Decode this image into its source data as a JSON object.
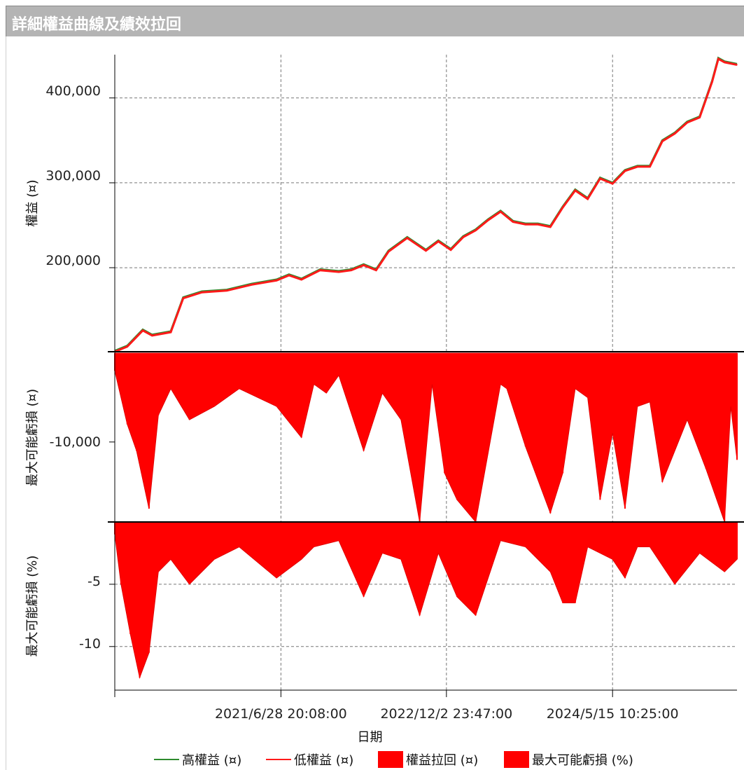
{
  "title": "詳細權益曲線及績效拉回",
  "chart_data": [
    {
      "panel": "equity",
      "type": "line",
      "ylabel": "權益 (¤)",
      "ylim": [
        101000,
        451000
      ],
      "yticks": [
        200000,
        300000,
        400000
      ],
      "ytick_labels": [
        "200,000",
        "300,000",
        "400,000"
      ],
      "x_fraction": [
        0,
        0.02,
        0.045,
        0.06,
        0.09,
        0.11,
        0.14,
        0.18,
        0.22,
        0.26,
        0.28,
        0.3,
        0.33,
        0.36,
        0.38,
        0.4,
        0.42,
        0.44,
        0.47,
        0.5,
        0.52,
        0.54,
        0.56,
        0.58,
        0.6,
        0.62,
        0.64,
        0.66,
        0.68,
        0.7,
        0.72,
        0.74,
        0.76,
        0.78,
        0.8,
        0.82,
        0.84,
        0.86,
        0.88,
        0.9,
        0.92,
        0.94,
        0.96,
        0.97,
        0.98,
        1.0
      ],
      "high_equity": [
        102000,
        108000,
        127000,
        121000,
        125000,
        165000,
        172000,
        174000,
        181000,
        186000,
        192000,
        187000,
        198000,
        196000,
        198000,
        204000,
        198000,
        220000,
        236000,
        221000,
        232000,
        222000,
        237000,
        245000,
        257000,
        267000,
        255000,
        252000,
        252000,
        249000,
        272000,
        292000,
        282000,
        306000,
        300000,
        315000,
        320000,
        320000,
        350000,
        359000,
        372000,
        378000,
        420000,
        447000,
        443000,
        440000
      ],
      "low_equity": [
        101000,
        107000,
        126000,
        120000,
        124000,
        164000,
        171000,
        173000,
        180000,
        185000,
        191000,
        186000,
        197000,
        195000,
        197000,
        203000,
        197000,
        219000,
        235000,
        220000,
        231000,
        221000,
        236000,
        244000,
        256000,
        266000,
        254000,
        251000,
        251000,
        248000,
        271000,
        291000,
        281000,
        305000,
        299000,
        314000,
        319000,
        319000,
        349000,
        358000,
        371000,
        377000,
        419000,
        446000,
        442000,
        439000
      ]
    },
    {
      "panel": "drawdown_abs",
      "type": "area",
      "ylabel": "最大可能虧損 (¤)",
      "ylim": [
        -19000,
        0
      ],
      "yticks": [
        -10000
      ],
      "ytick_labels": [
        "-10,000"
      ],
      "x_fraction": [
        0,
        0.02,
        0.035,
        0.055,
        0.07,
        0.09,
        0.12,
        0.16,
        0.2,
        0.26,
        0.3,
        0.32,
        0.34,
        0.36,
        0.4,
        0.43,
        0.46,
        0.49,
        0.51,
        0.53,
        0.55,
        0.58,
        0.62,
        0.63,
        0.66,
        0.7,
        0.7,
        0.72,
        0.74,
        0.76,
        0.78,
        0.8,
        0.82,
        0.84,
        0.86,
        0.88,
        0.92,
        0.95,
        0.98,
        0.99,
        1.0
      ],
      "values": [
        -2000,
        -8000,
        -11000,
        -17500,
        -7000,
        -4000,
        -7500,
        -6000,
        -4000,
        -6000,
        -9500,
        -3500,
        -4500,
        -2500,
        -11000,
        -4500,
        -7500,
        -19000,
        -3500,
        -13500,
        -16500,
        -19000,
        -3500,
        -4000,
        -10500,
        -18000,
        -18000,
        -13500,
        -4000,
        -5000,
        -16500,
        -9000,
        -17500,
        -6000,
        -5500,
        -14500,
        -7500,
        -13000,
        -19000,
        -6000,
        -12000
      ]
    },
    {
      "panel": "drawdown_pct",
      "type": "area",
      "xlabel": "日期",
      "ylabel": "最大可能虧損 (%)",
      "ylim": [
        -13.5,
        0
      ],
      "yticks": [
        -5,
        -10
      ],
      "ytick_labels": [
        "-5",
        "-10"
      ],
      "x_fraction": [
        0,
        0.01,
        0.025,
        0.04,
        0.055,
        0.07,
        0.09,
        0.12,
        0.16,
        0.2,
        0.26,
        0.3,
        0.32,
        0.36,
        0.4,
        0.43,
        0.46,
        0.49,
        0.52,
        0.55,
        0.58,
        0.62,
        0.66,
        0.7,
        0.72,
        0.74,
        0.76,
        0.8,
        0.82,
        0.84,
        0.86,
        0.9,
        0.94,
        0.98,
        1.0
      ],
      "values": [
        -1,
        -5,
        -9,
        -12.5,
        -10.5,
        -4,
        -3,
        -5,
        -3,
        -2,
        -4.5,
        -3,
        -2,
        -1.5,
        -6,
        -2.5,
        -3,
        -7.5,
        -2.5,
        -6,
        -7.5,
        -1.5,
        -2,
        -4,
        -6.5,
        -6.5,
        -2,
        -3,
        -4.5,
        -2,
        -2,
        -5,
        -2.5,
        -4,
        -3
      ]
    },
    {
      "panel": "x_axis",
      "type": "line",
      "xtick_labels": [
        "2021/6/28 20:08:00",
        "2022/12/2 23:47:00",
        "2024/5/15 10:25:00"
      ],
      "xtick_fraction": [
        0.267,
        0.533,
        0.8
      ]
    }
  ],
  "legend": {
    "items": [
      {
        "label": "高權益 (¤)",
        "swatch": "line",
        "color": "#2e8b2e"
      },
      {
        "label": "低權益 (¤)",
        "swatch": "line",
        "color": "#ff1a1a"
      },
      {
        "label": "權益拉回 (¤)",
        "swatch": "box",
        "color": "#ff0000"
      },
      {
        "label": "最大可能虧損 (%)",
        "swatch": "box",
        "color": "#ff0000"
      }
    ]
  }
}
